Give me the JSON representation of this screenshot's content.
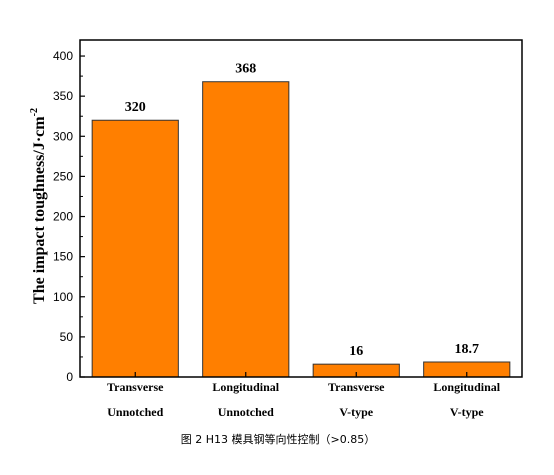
{
  "chart_data": {
    "type": "bar",
    "categories": [
      [
        "Transverse",
        "Unnotched"
      ],
      [
        "Longitudinal",
        "Unnotched"
      ],
      [
        "Transverse",
        "V-type"
      ],
      [
        "Longitudinal",
        "V-type"
      ]
    ],
    "values": [
      320,
      368,
      16,
      18.7
    ],
    "data_labels": [
      "320",
      "368",
      "16",
      "18.7"
    ],
    "ylabel": "The impact toughness/J·cm",
    "ylabel_superscript": "-2",
    "ylim": [
      0,
      420
    ],
    "yticks": [
      0,
      50,
      100,
      150,
      200,
      250,
      300,
      350,
      400
    ],
    "bar_color": "#ff7f00",
    "bar_edge_color": "#333333",
    "grid": false,
    "legend": "none"
  },
  "caption": "图 2 H13 模具钢等向性控制（>0.85）"
}
